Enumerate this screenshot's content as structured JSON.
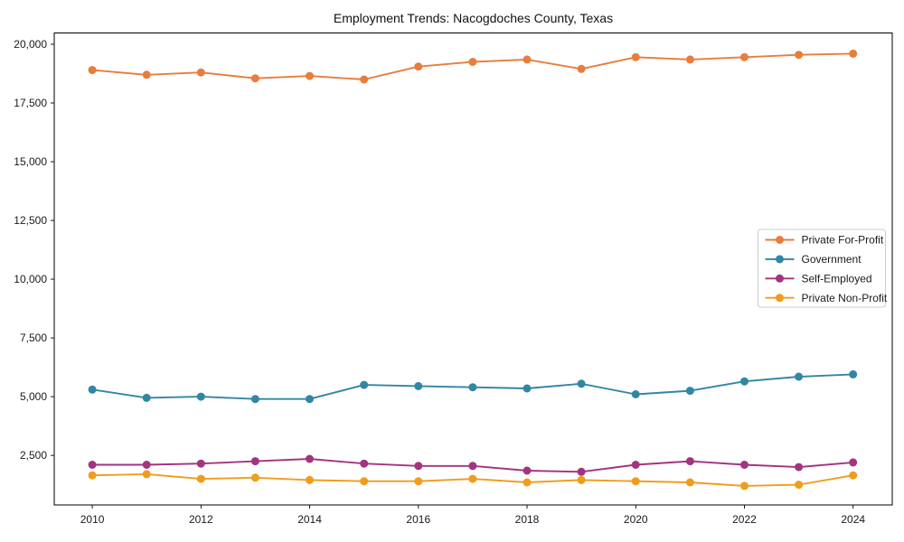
{
  "chart_data": {
    "type": "line",
    "title": "Employment Trends: Nacogdoches County, Texas",
    "xlabel": "",
    "ylabel": "",
    "grid": false,
    "background": "#ffffff",
    "axis_color": "#000000",
    "text_color": "#1a1a1a",
    "legend": {
      "position": "center right",
      "border_color": "#cccccc",
      "background": "#ffffff"
    },
    "xlim": [
      2009.3,
      2024.72
    ],
    "ylim": [
      390,
      20480
    ],
    "x": [
      2010,
      2011,
      2012,
      2013,
      2014,
      2015,
      2016,
      2017,
      2018,
      2019,
      2020,
      2021,
      2022,
      2023,
      2024
    ],
    "x_ticks": {
      "values": [
        2010,
        2012,
        2014,
        2016,
        2018,
        2020,
        2022,
        2024
      ],
      "labels": [
        "2010",
        "2012",
        "2014",
        "2016",
        "2018",
        "2020",
        "2022",
        "2024"
      ]
    },
    "y_ticks": {
      "values": [
        2500,
        5000,
        7500,
        10000,
        12500,
        15000,
        17500,
        20000
      ],
      "labels": [
        "2,500",
        "5,000",
        "7,500",
        "10,000",
        "12,500",
        "15,000",
        "17,500",
        "20,000"
      ]
    },
    "series": [
      {
        "name": "Private For-Profit",
        "color": "#e87d3c",
        "values": [
          18900,
          18700,
          18800,
          18550,
          18650,
          18500,
          19050,
          19250,
          19350,
          18950,
          19450,
          19350,
          19450,
          19550,
          19600
        ]
      },
      {
        "name": "Government",
        "color": "#3186a3",
        "values": [
          5300,
          4950,
          5000,
          4900,
          4900,
          5500,
          5450,
          5400,
          5350,
          5550,
          5100,
          5250,
          5650,
          5850,
          5950
        ]
      },
      {
        "name": "Self-Employed",
        "color": "#a23480",
        "values": [
          2100,
          2100,
          2150,
          2250,
          2350,
          2150,
          2050,
          2050,
          1850,
          1800,
          2100,
          2250,
          2100,
          2000,
          2200
        ]
      },
      {
        "name": "Private Non-Profit",
        "color": "#f09c1c",
        "values": [
          1650,
          1700,
          1500,
          1550,
          1450,
          1400,
          1400,
          1500,
          1350,
          1450,
          1400,
          1350,
          1200,
          1250,
          1650
        ]
      }
    ]
  }
}
